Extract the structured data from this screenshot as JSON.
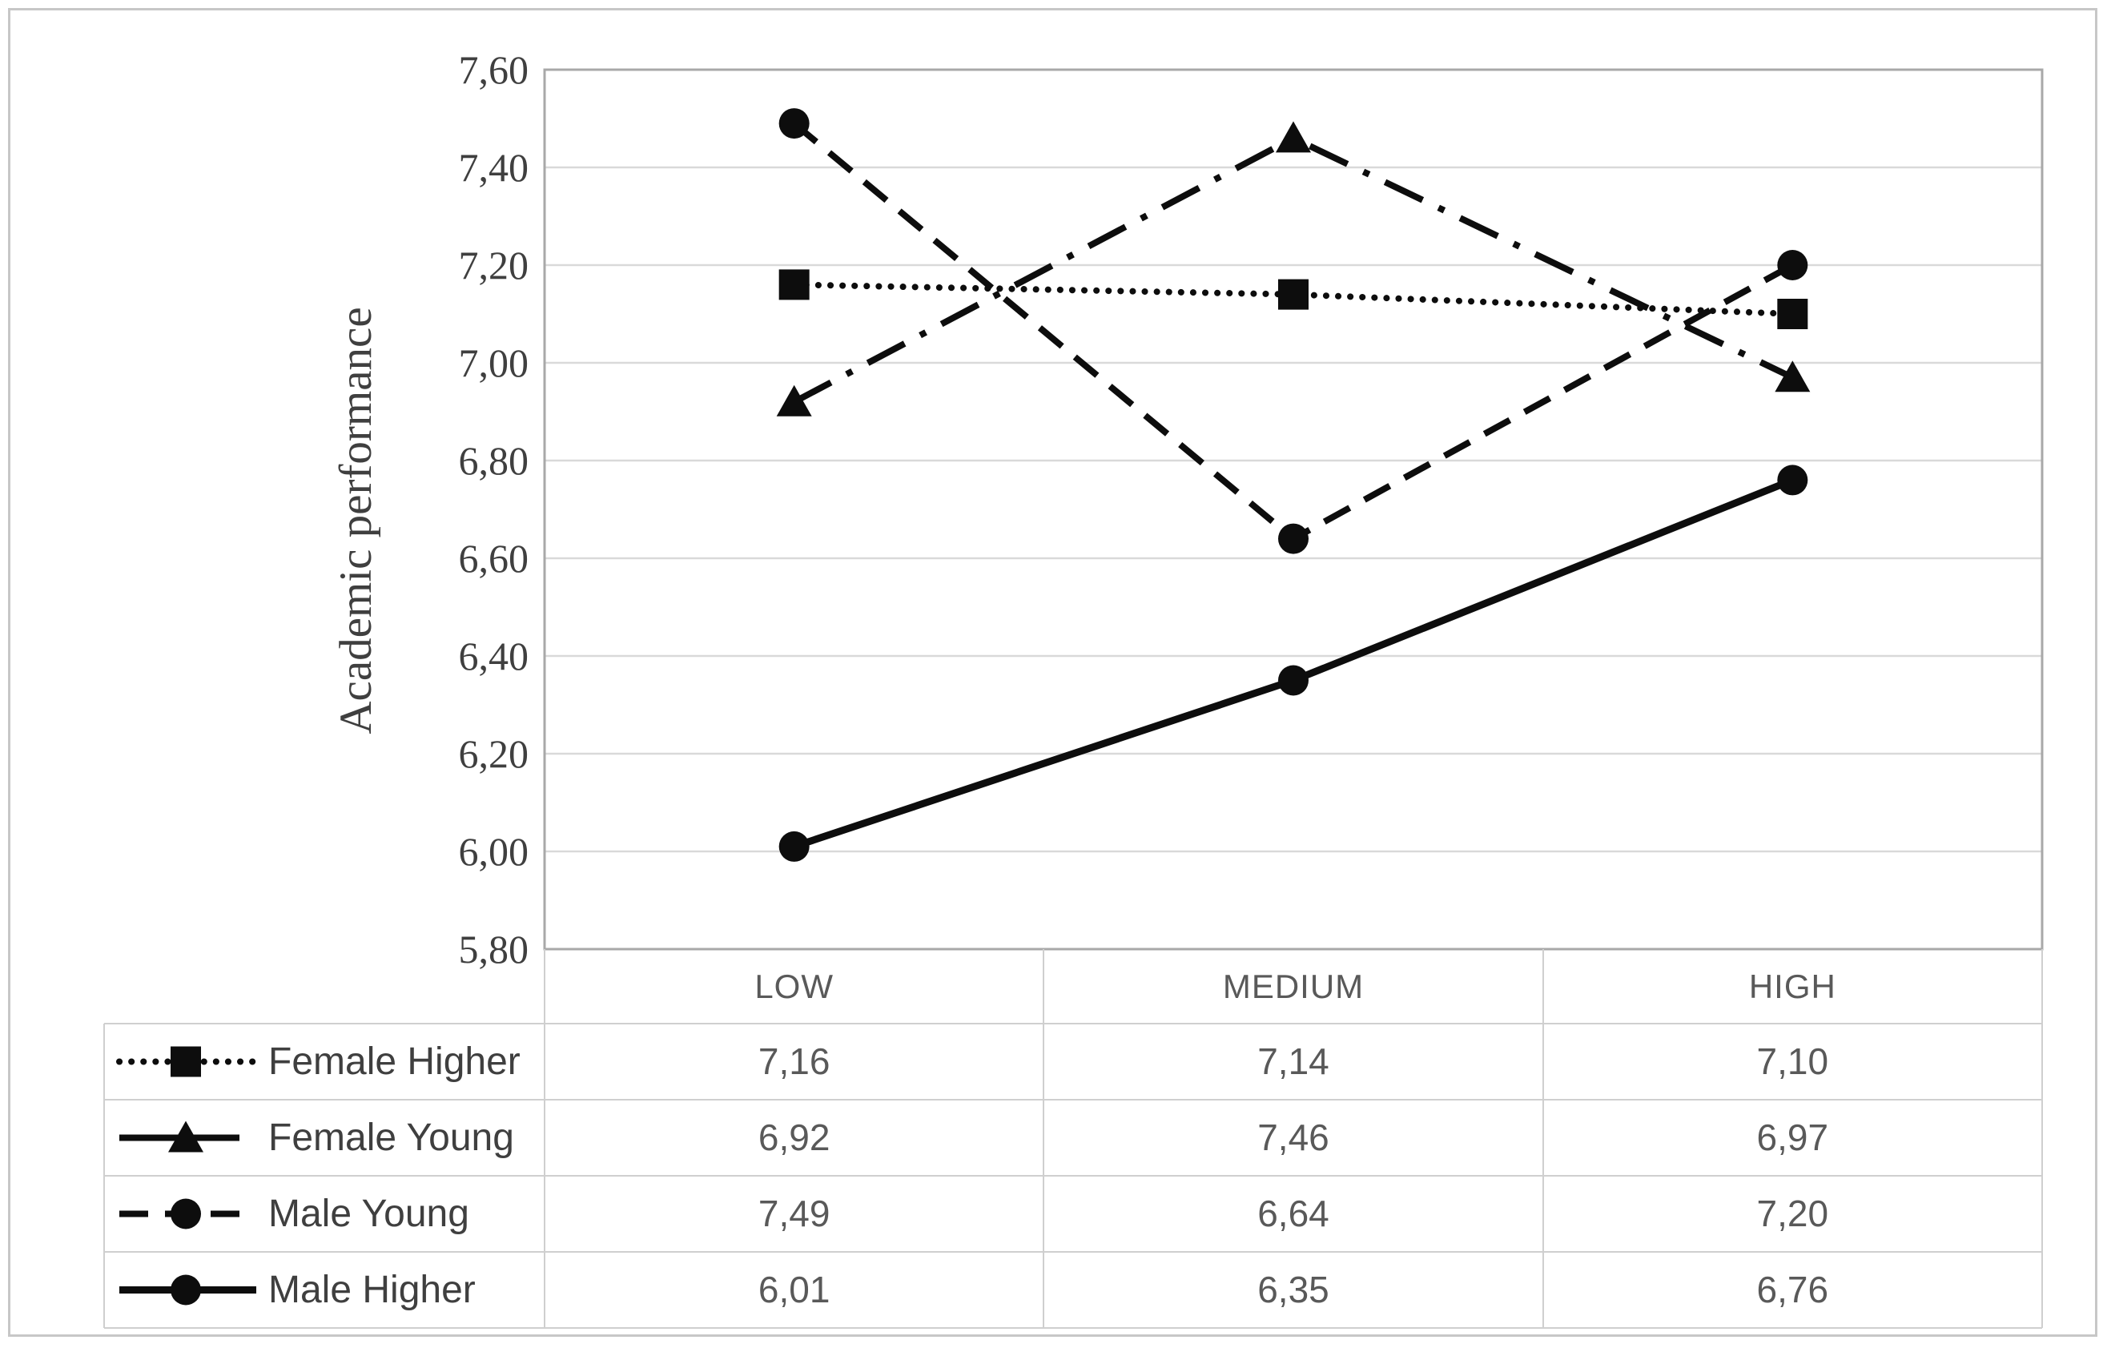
{
  "figure": {
    "type_hint": "excel-line-chart-with-data-table"
  },
  "colors": {
    "series": "#0d0d0d",
    "gridline": "#d9d9d9",
    "plot_border": "#a8a8a8",
    "table_border": "#cfcfcf",
    "tick_text": "#3f3f3f",
    "table_text": "#595959",
    "legend_text": "#3f3f3f",
    "figure_border": "#c7c7c7",
    "background": "#ffffff"
  },
  "chart_data": {
    "type": "line",
    "title": "",
    "xlabel": "",
    "ylabel": "Academic performance",
    "categories": [
      "LOW",
      "MEDIUM",
      "HIGH"
    ],
    "ylim": [
      5.8,
      7.6
    ],
    "y_tick_step": 0.2,
    "y_ticks": [
      "7,60",
      "7,40",
      "7,20",
      "7,00",
      "6,80",
      "6,60",
      "6,40",
      "6,20",
      "6,00",
      "5,80"
    ],
    "decimal_separator": ",",
    "grid": "horizontal",
    "legend_position": "data-table-left-column",
    "series": [
      {
        "name": "Female Higher",
        "values": [
          7.16,
          7.14,
          7.1
        ],
        "display": [
          "7,16",
          "7,14",
          "7,10"
        ],
        "line": "dotted",
        "marker": "square"
      },
      {
        "name": "Female Young",
        "values": [
          6.92,
          7.46,
          6.97
        ],
        "display": [
          "6,92",
          "7,46",
          "6,97"
        ],
        "line": "dash-dot",
        "marker": "triangle"
      },
      {
        "name": "Male Young",
        "values": [
          7.49,
          6.64,
          7.2
        ],
        "display": [
          "7,49",
          "6,64",
          "7,20"
        ],
        "line": "dashed",
        "marker": "circle"
      },
      {
        "name": "Male Higher",
        "values": [
          6.01,
          6.35,
          6.76
        ],
        "display": [
          "6,01",
          "6,35",
          "6,76"
        ],
        "line": "solid",
        "marker": "circle"
      }
    ]
  }
}
